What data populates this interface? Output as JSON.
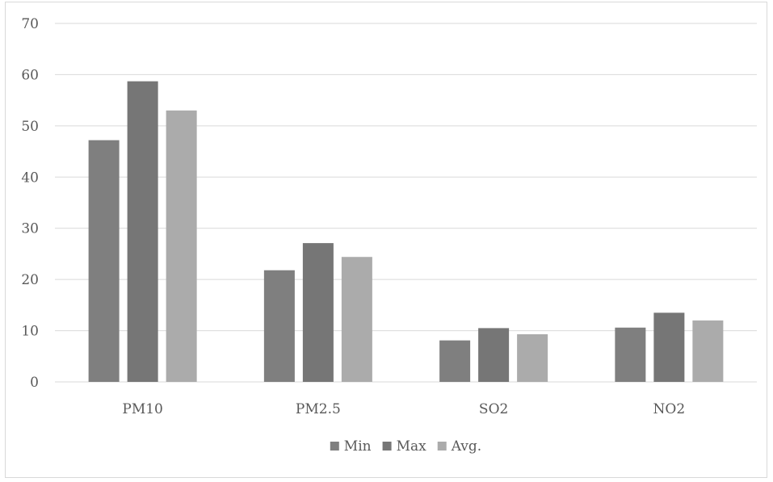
{
  "chart_data": {
    "type": "bar",
    "categories": [
      "PM10",
      "PM2.5",
      "SO2",
      "NO2"
    ],
    "series": [
      {
        "name": "Min",
        "values": [
          47.2,
          21.8,
          8.1,
          10.6
        ],
        "color": "#7f7f7f"
      },
      {
        "name": "Max",
        "values": [
          58.7,
          27.1,
          10.5,
          13.5
        ],
        "color": "#767676"
      },
      {
        "name": "Avg.",
        "values": [
          53.0,
          24.4,
          9.3,
          12.0
        ],
        "color": "#ababab"
      }
    ],
    "ylim": [
      0,
      70
    ],
    "yticks": [
      0,
      10,
      20,
      30,
      40,
      50,
      60,
      70
    ],
    "xlabel": "",
    "ylabel": "",
    "title": "",
    "grid": true,
    "legend_position": "bottom",
    "gridline_color": "#d9d9d9"
  }
}
